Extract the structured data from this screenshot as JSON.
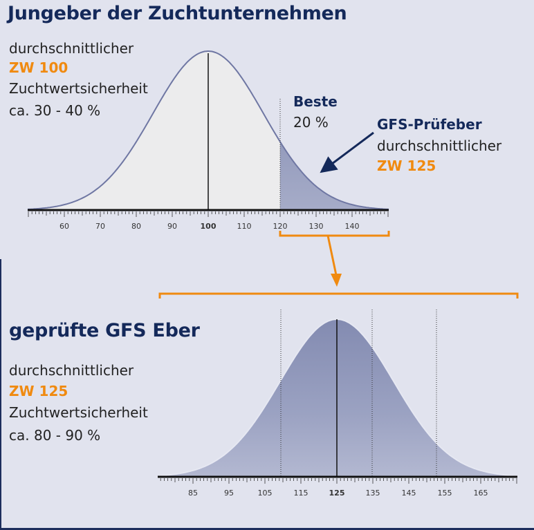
{
  "top": {
    "title": "Jungeber der Zuchtunternehmen",
    "desc_line1": "durchschnittlicher",
    "zw": "ZW 100",
    "desc_line3": "Zuchtwertsicherheit",
    "desc_line4": "ca. 30 - 40 %",
    "beste_label": "Beste",
    "beste_value": "20 %",
    "gfs_label": "GFS-Prüfeber",
    "gfs_line2": "durchschnittlicher",
    "gfs_zw": "ZW 125",
    "axis_ticks": [
      "60",
      "70",
      "80",
      "90",
      "100",
      "110",
      "120",
      "130",
      "140"
    ],
    "axis_highlight": "100"
  },
  "bottom": {
    "title": "geprüfte GFS Eber",
    "desc_line1": "durchschnittlicher",
    "zw": "ZW 125",
    "desc_line3": "Zuchtwertsicherheit",
    "desc_line4": "ca. 80 - 90 %",
    "axis_ticks": [
      "85",
      "95",
      "105",
      "115",
      "125",
      "135",
      "145",
      "155",
      "165"
    ],
    "axis_highlight": "125"
  },
  "colors": {
    "navy": "#14295a",
    "orange": "#f08a10",
    "background": "#e1e3ee",
    "curve_fill_light": "#ececed",
    "curve_fill_dark": "#8c94b8"
  }
}
